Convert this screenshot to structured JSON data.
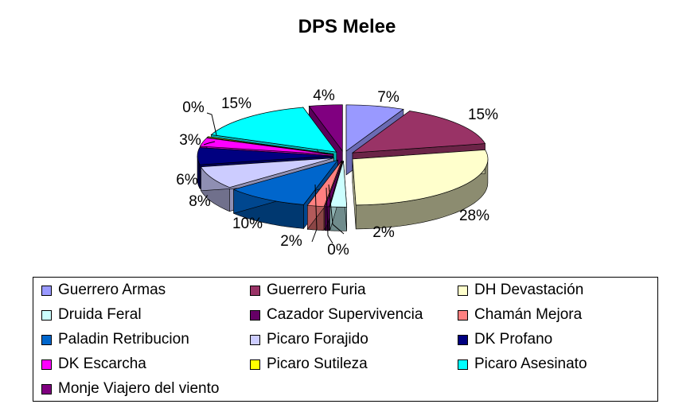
{
  "chart_data": {
    "type": "pie",
    "title": "DPS Melee",
    "series": [
      {
        "name": "Guerrero Armas",
        "percent_label": "7%",
        "value": 7,
        "color": "#9999ff"
      },
      {
        "name": "Guerrero Furia",
        "percent_label": "15%",
        "value": 15,
        "color": "#993366"
      },
      {
        "name": "DH Devastación",
        "percent_label": "28%",
        "value": 28,
        "color": "#ffffcc"
      },
      {
        "name": "Druida Feral",
        "percent_label": "2%",
        "value": 2,
        "color": "#ccffff"
      },
      {
        "name": "Cazador Supervivencia",
        "percent_label": "0%",
        "value": 0.5,
        "color": "#660066"
      },
      {
        "name": "Chamán Mejora",
        "percent_label": "2%",
        "value": 2,
        "color": "#ff8080"
      },
      {
        "name": "Paladin Retribucion",
        "percent_label": "10%",
        "value": 10,
        "color": "#0066cc"
      },
      {
        "name": "Picaro Forajido",
        "percent_label": "8%",
        "value": 8,
        "color": "#ccccff"
      },
      {
        "name": "DK Profano",
        "percent_label": "6%",
        "value": 6,
        "color": "#000080"
      },
      {
        "name": "DK Escarcha",
        "percent_label": "3%",
        "value": 3,
        "color": "#ff00ff"
      },
      {
        "name": "Picaro Sutileza",
        "percent_label": "0%",
        "value": 0.3,
        "color": "#ffff00"
      },
      {
        "name": "Picaro Asesinato",
        "percent_label": "15%",
        "value": 15,
        "color": "#00ffff"
      },
      {
        "name": "Monje Viajero del viento",
        "percent_label": "4%",
        "value": 4,
        "color": "#800080"
      }
    ],
    "legend_position": "bottom",
    "style": "3d-exploded-pie"
  }
}
